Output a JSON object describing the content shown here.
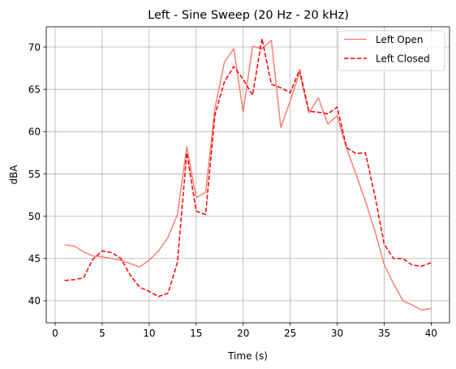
{
  "chart_data": {
    "type": "line",
    "title": "Left - Sine Sweep (20 Hz - 20 kHz)",
    "xlabel": "Time (s)",
    "ylabel": "dBA",
    "xlim": [
      -0.95,
      41.95
    ],
    "ylim": [
      37.4,
      72.4
    ],
    "xticks": [
      0,
      5,
      10,
      15,
      20,
      25,
      30,
      35,
      40
    ],
    "yticks": [
      40,
      45,
      50,
      55,
      60,
      65,
      70
    ],
    "grid": true,
    "legend_position": "top-right",
    "x": [
      1,
      2,
      3,
      4,
      5,
      6,
      7,
      8,
      9,
      10,
      11,
      12,
      13,
      14,
      15,
      16,
      17,
      18,
      19,
      20,
      21,
      22,
      23,
      24,
      25,
      26,
      27,
      28,
      29,
      30,
      31,
      32,
      33,
      34,
      35,
      36,
      37,
      38,
      39,
      40
    ],
    "series": [
      {
        "name": "Left Open",
        "color": "#fa8072",
        "dash": "solid",
        "values": [
          46.6,
          46.5,
          45.8,
          45.3,
          45.2,
          45.0,
          44.8,
          44.4,
          44.0,
          44.8,
          45.9,
          47.5,
          50.2,
          58.2,
          52.2,
          52.8,
          62.8,
          68.2,
          69.8,
          62.3,
          70.1,
          69.8,
          70.8,
          60.5,
          63.6,
          67.0,
          62.2,
          64.0,
          60.9,
          61.9,
          58.0,
          55.0,
          51.8,
          48.3,
          44.3,
          42.0,
          40.0,
          39.5,
          38.9,
          39.1
        ]
      },
      {
        "name": "Left Closed",
        "color": "#ff0000",
        "dash": "dashed",
        "values": [
          42.4,
          42.5,
          42.7,
          44.9,
          45.9,
          45.7,
          45.0,
          43.0,
          41.6,
          41.1,
          40.5,
          40.9,
          44.5,
          57.5,
          50.6,
          50.2,
          62.0,
          65.9,
          67.7,
          66.2,
          64.3,
          71.0,
          65.6,
          65.2,
          64.6,
          67.3,
          62.4,
          62.3,
          62.1,
          62.9,
          58.1,
          57.4,
          57.5,
          52.5,
          46.7,
          45.0,
          45.0,
          44.2,
          44.1,
          44.5
        ]
      }
    ]
  }
}
